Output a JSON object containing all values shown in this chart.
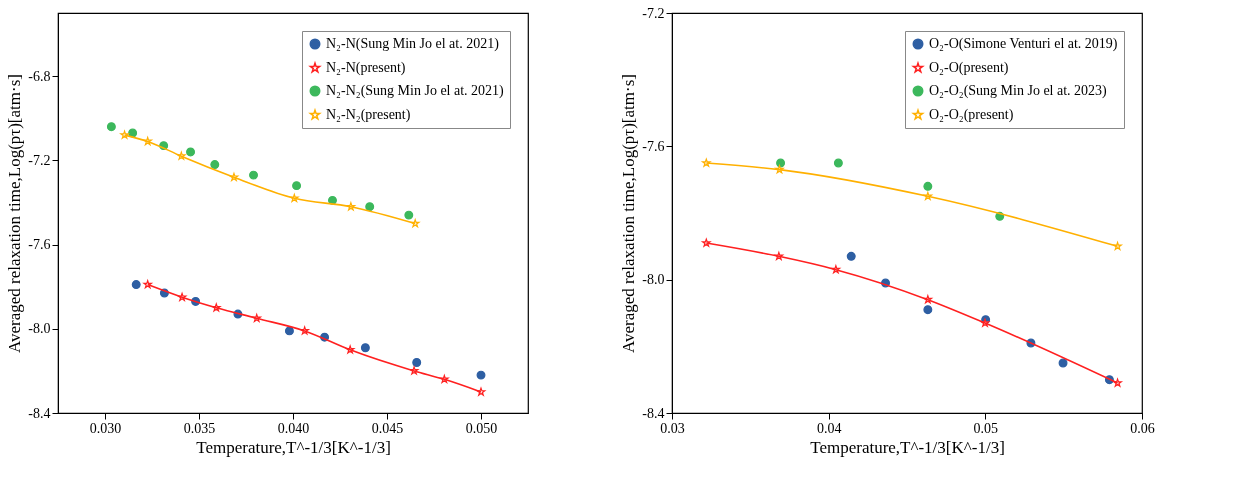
{
  "chart_data": [
    {
      "type": "scatter",
      "xlabel": "Temperature,T^-1/3[K^-1/3]",
      "ylabel": "Averaged relaxation time,Log(pτ)[atm·s]",
      "xlim": [
        0.0275,
        0.0525
      ],
      "xticks": [
        {
          "value": 0.03,
          "label": "0.030"
        },
        {
          "value": 0.035,
          "label": "0.035"
        },
        {
          "value": 0.04,
          "label": "0.040"
        },
        {
          "value": 0.045,
          "label": "0.045"
        },
        {
          "value": 0.05,
          "label": "0.050"
        }
      ],
      "ylim": [
        -8.4,
        -6.5
      ],
      "yticks": [
        -6.8,
        -7.2,
        -7.6,
        {
          "value": -8.0,
          "label": "-8.0"
        },
        -8.4
      ],
      "legend": "top right",
      "series": [
        {
          "name": "N₂-N(Sung Min Jo el at. 2021)",
          "marker": "circle",
          "color": "#2e5fa3",
          "x": [
            0.03166,
            0.03316,
            0.03482,
            0.03707,
            0.03981,
            0.04168,
            0.04385,
            0.04658,
            0.05
          ],
          "values": [
            -7.79,
            -7.83,
            -7.87,
            -7.93,
            -8.01,
            -8.04,
            -8.09,
            -8.16,
            -8.22
          ]
        },
        {
          "name": "N₂-N(present)",
          "type": "line",
          "marker": "star",
          "color": "#ff2020",
          "x": [
            0.03227,
            0.0341,
            0.03592,
            0.03807,
            0.04062,
            0.04304,
            0.04644,
            0.04805,
            0.05
          ],
          "values": [
            -7.79,
            -7.85,
            -7.9,
            -7.95,
            -8.01,
            -8.1,
            -8.2,
            -8.24,
            -8.3
          ]
        },
        {
          "name": "N₂-N₂(Sung Min Jo el at. 2021)",
          "marker": "circle",
          "color": "#3cb85c",
          "x": [
            0.03034,
            0.03147,
            0.03312,
            0.03455,
            0.03584,
            0.0379,
            0.04019,
            0.0421,
            0.04408,
            0.04616
          ],
          "values": [
            -7.04,
            -7.07,
            -7.13,
            -7.16,
            -7.22,
            -7.27,
            -7.32,
            -7.39,
            -7.42,
            -7.46
          ]
        },
        {
          "name": "N₂-N₂(present)",
          "type": "line",
          "marker": "star",
          "color": "#ffb000",
          "x": [
            0.03104,
            0.03227,
            0.03406,
            0.03686,
            0.04007,
            0.04308,
            0.0465
          ],
          "values": [
            -7.08,
            -7.11,
            -7.18,
            -7.28,
            -7.38,
            -7.42,
            -7.5
          ]
        }
      ]
    },
    {
      "type": "scatter",
      "xlabel": "Temperature,T^-1/3[K^-1/3]",
      "ylabel": "Averaged relaxation time,Log(pτ)[atm·s]",
      "xlim": [
        0.03,
        0.06
      ],
      "xticks": [
        0.03,
        0.04,
        0.05,
        0.06
      ],
      "ylim": [
        -8.4,
        -7.2
      ],
      "yticks": [
        -7.2,
        -7.6,
        {
          "value": -8.0,
          "label": "-8.0"
        },
        -8.4
      ],
      "legend": "top right",
      "series": [
        {
          "name": "O₂-O(Simone Venturi el at. 2019)",
          "marker": "circle",
          "color": "#2e5fa3",
          "x": [
            0.04144,
            0.04363,
            0.04633,
            0.05002,
            0.05291,
            0.05496,
            0.05792
          ],
          "values": [
            -7.93,
            -8.01,
            -8.09,
            -8.12,
            -8.19,
            -8.25,
            -8.3
          ]
        },
        {
          "name": "O₂-O(present)",
          "type": "line",
          "marker": "star",
          "color": "#ff2020",
          "x": [
            0.03219,
            0.03682,
            0.04046,
            0.04633,
            0.04998,
            0.05844
          ],
          "values": [
            -7.89,
            -7.93,
            -7.97,
            -8.06,
            -8.13,
            -8.31
          ]
        },
        {
          "name": "O₂-O₂(Sung Min Jo el at. 2023)",
          "marker": "circle",
          "color": "#3cb85c",
          "x": [
            0.03693,
            0.04062,
            0.04633,
            0.05092
          ],
          "values": [
            -7.65,
            -7.65,
            -7.72,
            -7.81
          ]
        },
        {
          "name": "O₂-O₂(present)",
          "type": "line",
          "marker": "star",
          "color": "#ffb000",
          "x": [
            0.03219,
            0.03686,
            0.04633,
            0.05844
          ],
          "values": [
            -7.65,
            -7.67,
            -7.75,
            -7.9
          ]
        }
      ]
    }
  ]
}
